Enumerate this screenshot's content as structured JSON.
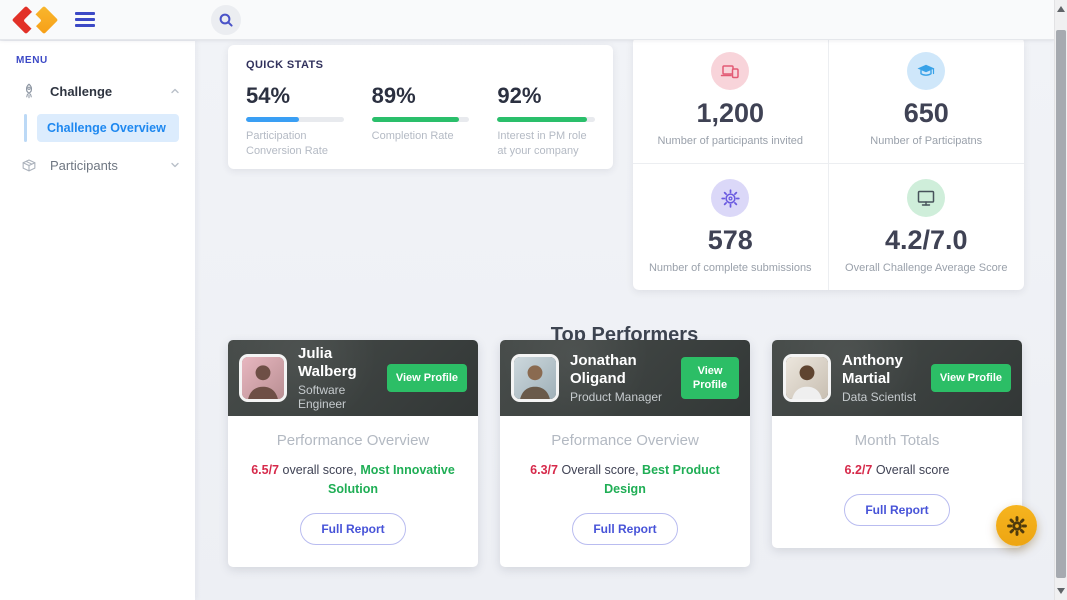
{
  "topbar": {
    "logo": "diamond-logo",
    "search_icon": "search"
  },
  "sidebar": {
    "menu_label": "MENU",
    "challenge": {
      "label": "Challenge",
      "icon": "rocket",
      "expanded": true
    },
    "challenge_overview": {
      "label": "Challenge Overview",
      "active": true
    },
    "participants": {
      "label": "Participants",
      "icon": "package",
      "expanded": false
    }
  },
  "quick_stats": {
    "title": "QUICK STATS",
    "stats": [
      {
        "value": "54%",
        "percent": 54,
        "label": "Participation Conversion Rate",
        "color": "#3a9ff4"
      },
      {
        "value": "89%",
        "percent": 89,
        "label": "Completion Rate",
        "color": "#2abf6b"
      },
      {
        "value": "92%",
        "percent": 92,
        "label": "Interest in PM role at your company",
        "color": "#2abf6b"
      }
    ]
  },
  "summary": {
    "cards": [
      {
        "icon": "devices",
        "value": "1,200",
        "label": "Number of participants invited"
      },
      {
        "icon": "graduation-cap",
        "value": "650",
        "label": "Number of Participatns"
      },
      {
        "icon": "gear",
        "value": "578",
        "label": "Number of complete submissions"
      },
      {
        "icon": "monitor",
        "value": "4.2/7.0",
        "label": "Overall Challenge Average Score"
      }
    ]
  },
  "performers": {
    "title": "Top Performers",
    "view_profile_label": "View Profile",
    "full_report_label": "Full Report",
    "cards": [
      {
        "name": "Julia Walberg",
        "role": "Software Engineer",
        "overview_title": "Performance Overview",
        "score": "6.5/7",
        "score_text": "overall score,",
        "award": "Most Innovative Solution"
      },
      {
        "name": "Jonathan Oligand",
        "role": "Product Manager",
        "overview_title": "Peformance Overview",
        "score": "6.3/7",
        "score_text": "Overall score,",
        "award": "Best Product Design"
      },
      {
        "name": "Anthony Martial",
        "role": "Data Scientist",
        "overview_title": "Month Totals",
        "score": "6.2/7",
        "score_text": "Overall score",
        "award": ""
      }
    ]
  },
  "fab": {
    "icon": "gear"
  },
  "colors": {
    "accent_indigo": "#3c49c6",
    "active_blue": "#1e88f0",
    "active_blue_bg": "#dcecfd",
    "green_button": "#2cbe66",
    "score_red": "#d6294a",
    "award_green": "#1fae55",
    "fab_orange": "#f3ac17",
    "progress_blue": "#3a9ff4",
    "progress_green": "#2abf6b"
  }
}
